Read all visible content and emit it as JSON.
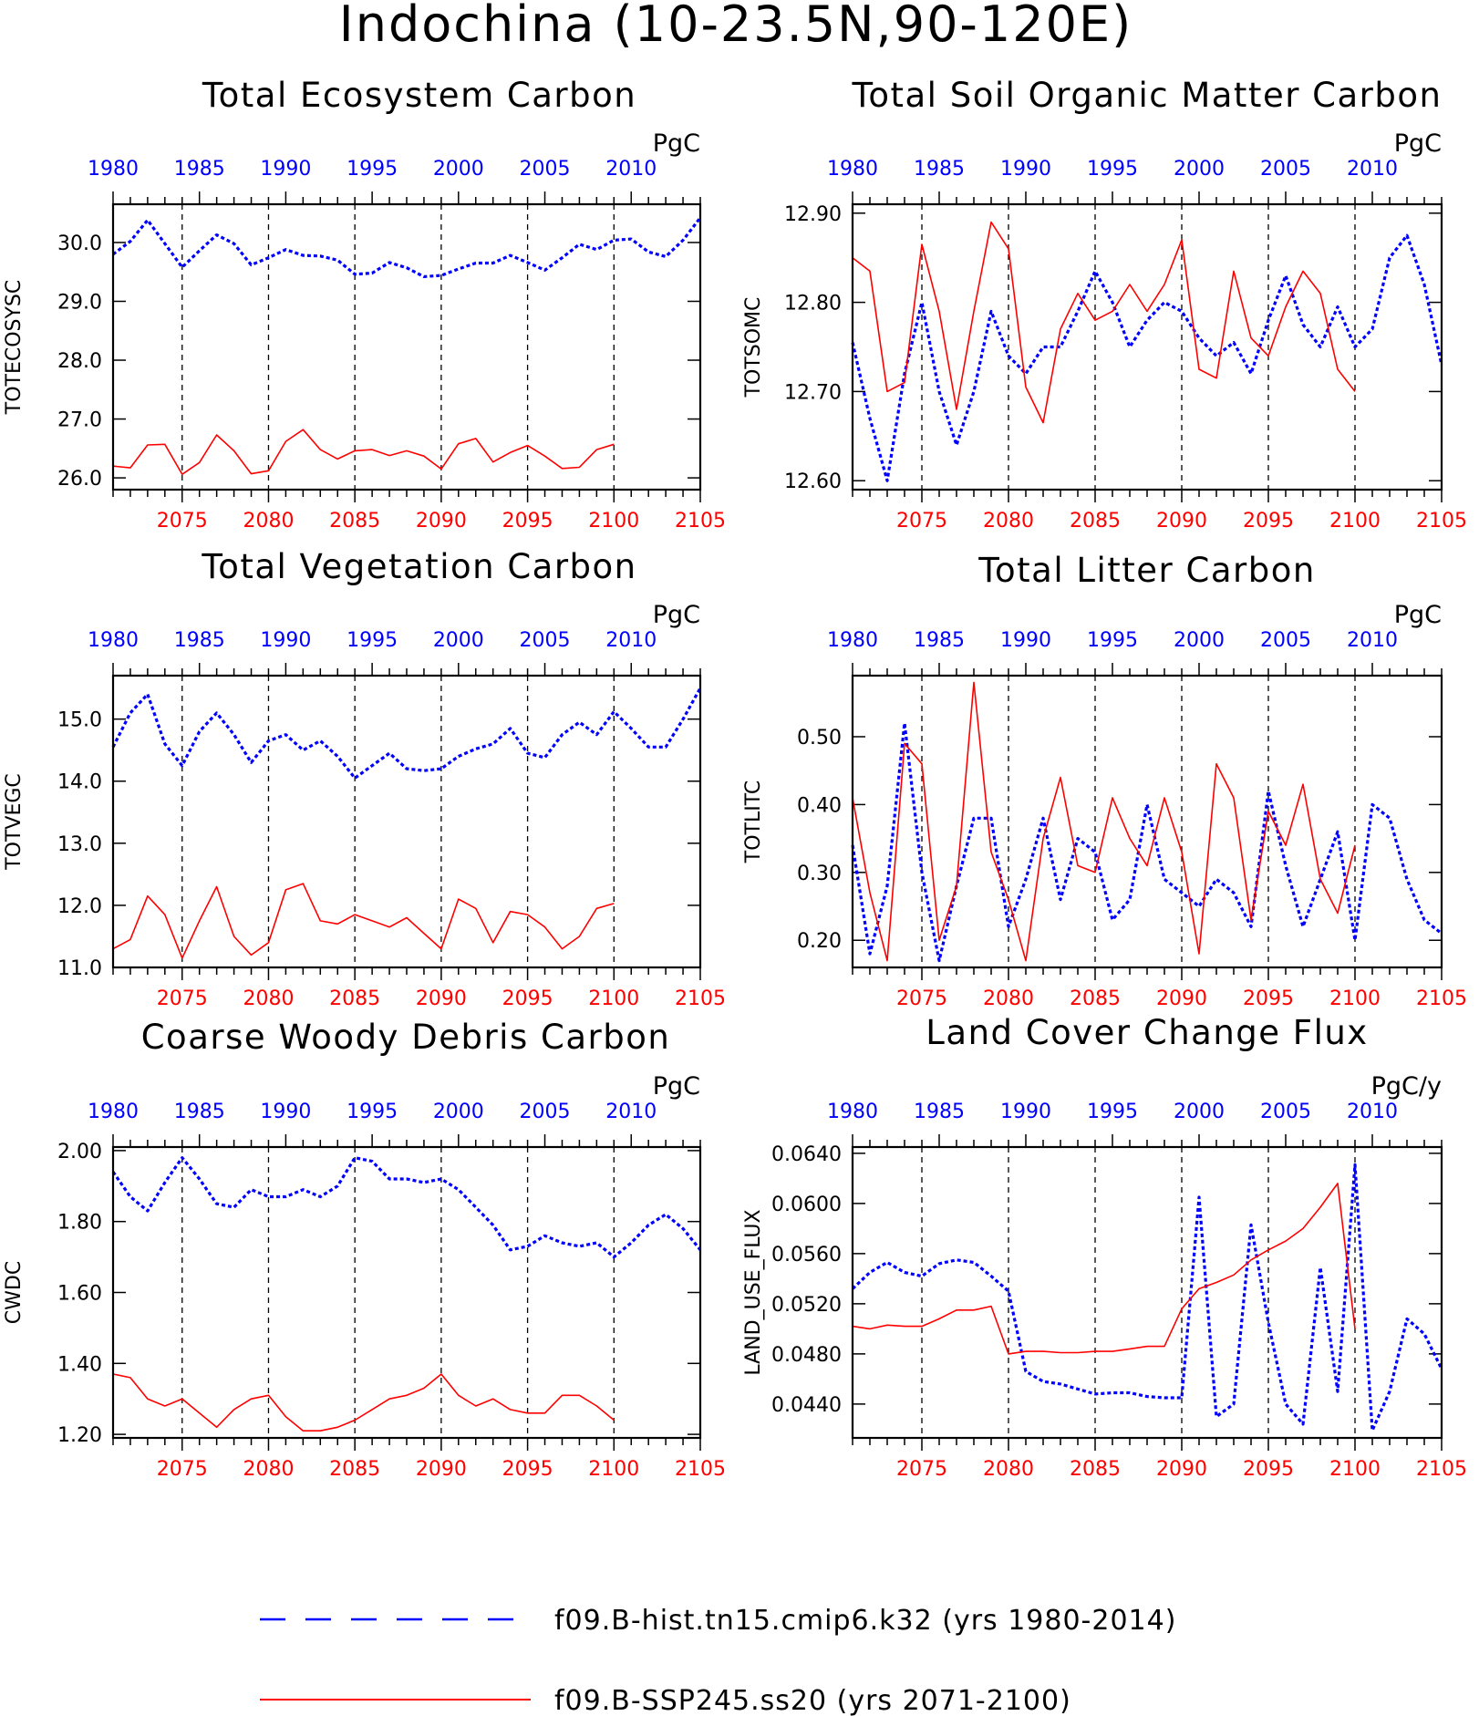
{
  "title": "Indochina (10-23.5N,90-120E)",
  "colors": {
    "historical": "#0000ff",
    "ssp": "#ff0000",
    "axes": "#000000",
    "grid": "#000000"
  },
  "legend": {
    "historical": "f09.B-hist.tn15.cmip6.k32 (yrs 1980-2014)",
    "ssp": "f09.B-SSP245.ss20 (yrs 2071-2100)"
  },
  "chart_data": [
    {
      "type": "line",
      "title": "Total Ecosystem Carbon",
      "units": "PgC",
      "ylabel": "TOTECOSYSC",
      "ylim": [
        25.8,
        30.65
      ],
      "yticks": [
        "30.0",
        "29.0",
        "28.0",
        "27.0",
        "26.0"
      ],
      "ytick_values": [
        30.0,
        29.0,
        28.0,
        27.0,
        26.0
      ],
      "x_top_labels": [
        "1980",
        "1985",
        "1990",
        "1995",
        "2000",
        "2005",
        "2010"
      ],
      "x_bottom_labels": [
        "2075",
        "2080",
        "2085",
        "2090",
        "2095",
        "2100",
        "2105"
      ],
      "series": [
        {
          "name": "f09.B-hist.tn15.cmip6.k32 (yrs 1980-2014)",
          "style": "dotted",
          "x_start": 1980,
          "values": [
            29.8,
            30.02,
            30.38,
            29.98,
            29.58,
            29.86,
            30.13,
            29.98,
            29.62,
            29.74,
            29.88,
            29.78,
            29.77,
            29.7,
            29.46,
            29.48,
            29.66,
            29.57,
            29.42,
            29.44,
            29.55,
            29.65,
            29.65,
            29.78,
            29.66,
            29.53,
            29.74,
            29.97,
            29.88,
            30.04,
            30.06,
            29.84,
            29.76,
            30.04,
            30.42
          ]
        },
        {
          "name": "f09.B-SSP245.ss20 (yrs 2071-2100)",
          "style": "solid",
          "x_start": 2071,
          "values": [
            26.2,
            26.17,
            26.56,
            26.57,
            26.06,
            26.26,
            26.73,
            26.46,
            26.07,
            26.12,
            26.62,
            26.82,
            26.48,
            26.32,
            26.46,
            26.48,
            26.38,
            26.46,
            26.37,
            26.15,
            26.58,
            26.67,
            26.27,
            26.43,
            26.55,
            26.37,
            26.16,
            26.18,
            26.48,
            26.57
          ]
        }
      ]
    },
    {
      "type": "line",
      "title": "Total Soil Organic Matter Carbon",
      "units": "PgC",
      "ylabel": "TOTSOMC",
      "ylim": [
        12.59,
        12.91
      ],
      "yticks": [
        "12.90",
        "12.80",
        "12.70",
        "12.60"
      ],
      "ytick_values": [
        12.9,
        12.8,
        12.7,
        12.6
      ],
      "x_top_labels": [
        "1980",
        "1985",
        "1990",
        "1995",
        "2000",
        "2005",
        "2010"
      ],
      "x_bottom_labels": [
        "2075",
        "2080",
        "2085",
        "2090",
        "2095",
        "2100",
        "2105"
      ],
      "series": [
        {
          "name": "f09.B-hist.tn15.cmip6.k32 (yrs 1980-2014)",
          "style": "dotted",
          "x_start": 1980,
          "values": [
            12.755,
            12.67,
            12.6,
            12.72,
            12.8,
            12.7,
            12.64,
            12.7,
            12.79,
            12.74,
            12.72,
            12.75,
            12.75,
            12.79,
            12.835,
            12.8,
            12.75,
            12.78,
            12.8,
            12.79,
            12.76,
            12.74,
            12.755,
            12.72,
            12.78,
            12.83,
            12.775,
            12.75,
            12.795,
            12.75,
            12.77,
            12.85,
            12.875,
            12.82,
            12.73
          ]
        },
        {
          "name": "f09.B-SSP245.ss20 (yrs 2071-2100)",
          "style": "solid",
          "x_start": 2071,
          "values": [
            12.85,
            12.835,
            12.7,
            12.71,
            12.865,
            12.79,
            12.68,
            12.79,
            12.89,
            12.86,
            12.705,
            12.665,
            12.77,
            12.81,
            12.78,
            12.79,
            12.82,
            12.79,
            12.82,
            12.87,
            12.725,
            12.715,
            12.835,
            12.76,
            12.74,
            12.795,
            12.835,
            12.81,
            12.725,
            12.7
          ]
        }
      ]
    },
    {
      "type": "line",
      "title": "Total Vegetation Carbon",
      "units": "PgC",
      "ylabel": "TOTVEGC",
      "ylim": [
        11.0,
        15.7
      ],
      "yticks": [
        "15.0",
        "14.0",
        "13.0",
        "12.0",
        "11.0"
      ],
      "ytick_values": [
        15.0,
        14.0,
        13.0,
        12.0,
        11.0
      ],
      "x_top_labels": [
        "1980",
        "1985",
        "1990",
        "1995",
        "2000",
        "2005",
        "2010"
      ],
      "x_bottom_labels": [
        "2075",
        "2080",
        "2085",
        "2090",
        "2095",
        "2100",
        "2105"
      ],
      "series": [
        {
          "name": "f09.B-hist.tn15.cmip6.k32 (yrs 1980-2014)",
          "style": "dotted",
          "x_start": 1980,
          "values": [
            14.55,
            15.1,
            15.4,
            14.6,
            14.25,
            14.8,
            15.1,
            14.75,
            14.3,
            14.65,
            14.75,
            14.5,
            14.65,
            14.4,
            14.05,
            14.25,
            14.45,
            14.2,
            14.17,
            14.2,
            14.4,
            14.52,
            14.6,
            14.85,
            14.45,
            14.38,
            14.75,
            14.95,
            14.75,
            15.12,
            14.85,
            14.55,
            14.55,
            15.0,
            15.5
          ]
        },
        {
          "name": "f09.B-SSP245.ss20 (yrs 2071-2100)",
          "style": "solid",
          "x_start": 2071,
          "values": [
            11.3,
            11.45,
            12.15,
            11.85,
            11.15,
            11.75,
            12.3,
            11.5,
            11.2,
            11.4,
            12.25,
            12.35,
            11.75,
            11.7,
            11.85,
            11.75,
            11.65,
            11.8,
            11.55,
            11.3,
            12.1,
            11.95,
            11.4,
            11.9,
            11.85,
            11.65,
            11.3,
            11.5,
            11.95,
            12.03
          ]
        }
      ]
    },
    {
      "type": "line",
      "title": "Total Litter Carbon",
      "units": "PgC",
      "ylabel": "TOTLITC",
      "ylim": [
        0.16,
        0.59
      ],
      "yticks": [
        "0.50",
        "0.40",
        "0.30",
        "0.20"
      ],
      "ytick_values": [
        0.5,
        0.4,
        0.3,
        0.2
      ],
      "x_top_labels": [
        "1980",
        "1985",
        "1990",
        "1995",
        "2000",
        "2005",
        "2010"
      ],
      "x_bottom_labels": [
        "2075",
        "2080",
        "2085",
        "2090",
        "2095",
        "2100",
        "2105"
      ],
      "series": [
        {
          "name": "f09.B-hist.tn15.cmip6.k32 (yrs 1980-2014)",
          "style": "dotted",
          "x_start": 1980,
          "values": [
            0.34,
            0.18,
            0.28,
            0.52,
            0.3,
            0.17,
            0.28,
            0.38,
            0.38,
            0.22,
            0.29,
            0.38,
            0.26,
            0.35,
            0.33,
            0.23,
            0.26,
            0.4,
            0.29,
            0.27,
            0.25,
            0.29,
            0.27,
            0.22,
            0.42,
            0.31,
            0.22,
            0.29,
            0.36,
            0.2,
            0.4,
            0.38,
            0.29,
            0.23,
            0.21
          ]
        },
        {
          "name": "f09.B-SSP245.ss20 (yrs 2071-2100)",
          "style": "solid",
          "x_start": 2071,
          "values": [
            0.41,
            0.27,
            0.17,
            0.49,
            0.46,
            0.2,
            0.28,
            0.58,
            0.33,
            0.26,
            0.17,
            0.35,
            0.44,
            0.31,
            0.3,
            0.41,
            0.35,
            0.31,
            0.41,
            0.33,
            0.18,
            0.46,
            0.41,
            0.23,
            0.39,
            0.34,
            0.43,
            0.29,
            0.24,
            0.34
          ]
        }
      ]
    },
    {
      "type": "line",
      "title": "Coarse Woody Debris Carbon",
      "units": "PgC",
      "ylabel": "CWDC",
      "ylim": [
        1.19,
        2.01
      ],
      "yticks": [
        "2.00",
        "1.80",
        "1.60",
        "1.40",
        "1.20"
      ],
      "ytick_values": [
        2.0,
        1.8,
        1.6,
        1.4,
        1.2
      ],
      "x_top_labels": [
        "1980",
        "1985",
        "1990",
        "1995",
        "2000",
        "2005",
        "2010"
      ],
      "x_bottom_labels": [
        "2075",
        "2080",
        "2085",
        "2090",
        "2095",
        "2100",
        "2105"
      ],
      "series": [
        {
          "name": "f09.B-hist.tn15.cmip6.k32 (yrs 1980-2014)",
          "style": "dotted",
          "x_start": 1980,
          "values": [
            1.94,
            1.87,
            1.83,
            1.91,
            1.98,
            1.92,
            1.85,
            1.84,
            1.89,
            1.87,
            1.87,
            1.89,
            1.87,
            1.9,
            1.98,
            1.97,
            1.92,
            1.92,
            1.91,
            1.92,
            1.89,
            1.84,
            1.79,
            1.72,
            1.73,
            1.76,
            1.74,
            1.73,
            1.74,
            1.7,
            1.74,
            1.79,
            1.82,
            1.78,
            1.72
          ]
        },
        {
          "name": "f09.B-SSP245.ss20 (yrs 2071-2100)",
          "style": "solid",
          "x_start": 2071,
          "values": [
            1.37,
            1.36,
            1.3,
            1.28,
            1.3,
            1.26,
            1.22,
            1.27,
            1.3,
            1.31,
            1.25,
            1.21,
            1.21,
            1.22,
            1.24,
            1.27,
            1.3,
            1.31,
            1.33,
            1.37,
            1.31,
            1.28,
            1.3,
            1.27,
            1.26,
            1.26,
            1.31,
            1.31,
            1.28,
            1.24
          ]
        }
      ]
    },
    {
      "type": "line",
      "title": "Land Cover Change Flux",
      "units": "PgC/y",
      "ylabel": "LAND_USE_FLUX",
      "ylim": [
        0.0413,
        0.0645
      ],
      "yticks": [
        "0.0640",
        "0.0600",
        "0.0560",
        "0.0520",
        "0.0480",
        "0.0440"
      ],
      "ytick_values": [
        0.064,
        0.06,
        0.056,
        0.052,
        0.048,
        0.044
      ],
      "x_top_labels": [
        "1980",
        "1985",
        "1990",
        "1995",
        "2000",
        "2005",
        "2010"
      ],
      "x_bottom_labels": [
        "2075",
        "2080",
        "2085",
        "2090",
        "2095",
        "2100",
        "2105"
      ],
      "series": [
        {
          "name": "f09.B-hist.tn15.cmip6.k32 (yrs 1980-2014)",
          "style": "dotted",
          "x_start": 1980,
          "values": [
            0.0532,
            0.0545,
            0.0553,
            0.0545,
            0.0542,
            0.0552,
            0.0555,
            0.0553,
            0.0542,
            0.053,
            0.0466,
            0.0458,
            0.0456,
            0.0452,
            0.0448,
            0.0449,
            0.0449,
            0.0446,
            0.0445,
            0.0445,
            0.0605,
            0.043,
            0.044,
            0.0583,
            0.0505,
            0.044,
            0.0424,
            0.0549,
            0.045,
            0.0631,
            0.0419,
            0.045,
            0.0508,
            0.0496,
            0.0468
          ]
        },
        {
          "name": "f09.B-SSP245.ss20 (yrs 2071-2100)",
          "style": "solid",
          "x_start": 2071,
          "values": [
            0.0502,
            0.05,
            0.0503,
            0.0502,
            0.0502,
            0.0508,
            0.0515,
            0.0515,
            0.0518,
            0.048,
            0.0482,
            0.0482,
            0.0481,
            0.0481,
            0.0482,
            0.0482,
            0.0484,
            0.0486,
            0.0486,
            0.0516,
            0.0532,
            0.0537,
            0.0543,
            0.0555,
            0.0563,
            0.057,
            0.058,
            0.0597,
            0.0616,
            0.05
          ]
        }
      ]
    }
  ]
}
